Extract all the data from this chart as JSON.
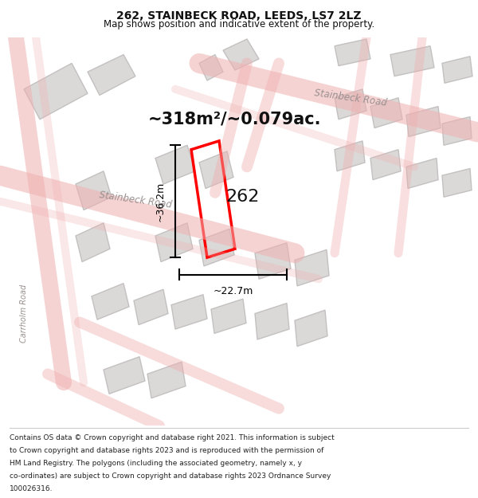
{
  "title": "262, STAINBECK ROAD, LEEDS, LS7 2LZ",
  "subtitle": "Map shows position and indicative extent of the property.",
  "area_text": "~318m²/~0.079ac.",
  "property_number": "262",
  "dim_width": "~22.7m",
  "dim_height": "~36.2m",
  "copyright_lines": [
    "Contains OS data © Crown copyright and database right 2021. This information is subject",
    "to Crown copyright and database rights 2023 and is reproduced with the permission of",
    "HM Land Registry. The polygons (including the associated geometry, namely x, y",
    "co-ordinates) are subject to Crown copyright and database rights 2023 Ordnance Survey",
    "100026316."
  ],
  "map_bg_color": "#f9f5f5",
  "road_color": "#f0b0b0",
  "building_color": "#d8d4d4",
  "building_edge_color": "#c0bcbc",
  "property_color": "#ff0000",
  "road_label_color": "#9a9090",
  "title_color": "#111111",
  "footer_color": "#222222"
}
